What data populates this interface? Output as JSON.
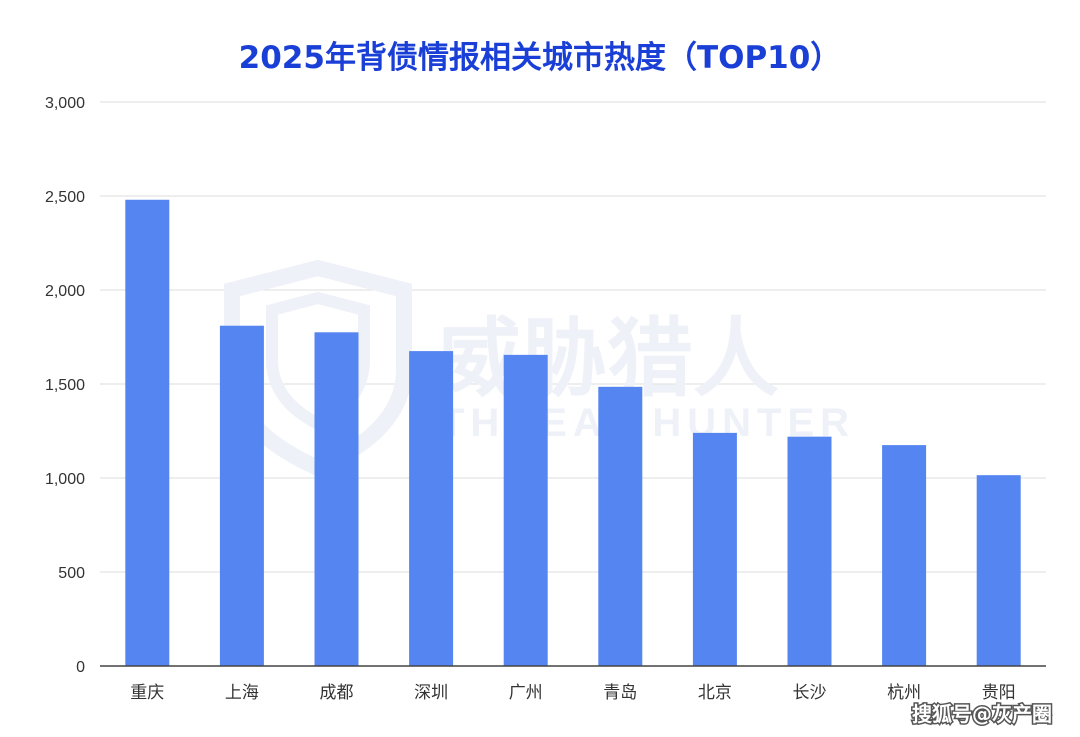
{
  "chart_data": {
    "type": "bar",
    "title": "2025年背债情报相关城市热度（TOP10）",
    "categories": [
      "重庆",
      "上海",
      "成都",
      "深圳",
      "广州",
      "青岛",
      "北京",
      "长沙",
      "杭州",
      "贵阳"
    ],
    "values": [
      2480,
      1810,
      1775,
      1675,
      1655,
      1485,
      1240,
      1220,
      1175,
      1015
    ],
    "ylim": [
      0,
      3000
    ],
    "yticks": [
      0,
      500,
      1000,
      1500,
      2000,
      2500,
      3000
    ],
    "ytick_labels": [
      "0",
      "500",
      "1,000",
      "1,500",
      "2,000",
      "2,500",
      "3,000"
    ],
    "grid": true,
    "bar_color": "#5585f0",
    "title_color": "#1a3fd6"
  },
  "watermark": {
    "text_cn": "威胁猎人",
    "text_en": "THREAT HUNTER"
  },
  "source_mark": "搜狐号@灰产圈"
}
